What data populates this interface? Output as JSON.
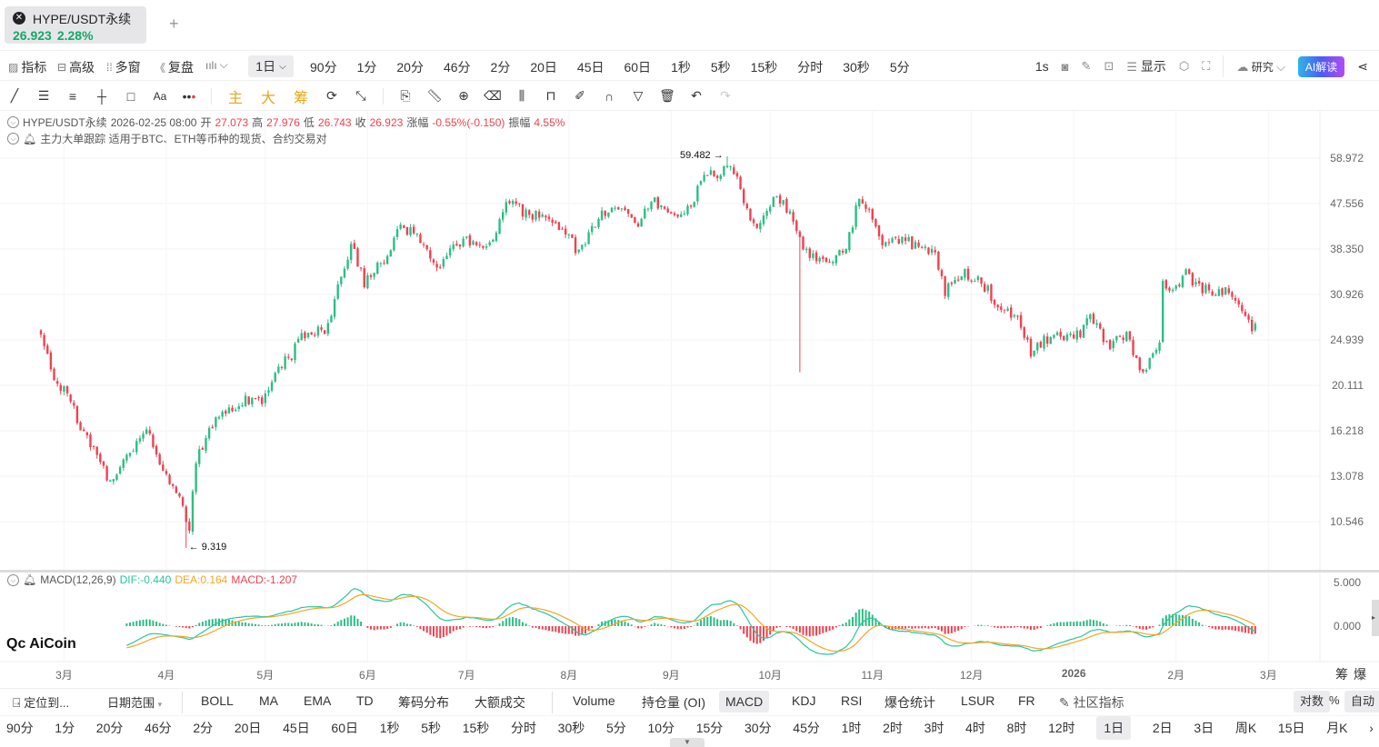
{
  "tab": {
    "symbol": "HYPE/USDT永续",
    "price": "26.923",
    "change": "2.28%",
    "icon": "hype-coin-icon",
    "add_label": "+"
  },
  "toolbar1": {
    "left": [
      {
        "icon": "indicator-icon",
        "label": "指标"
      },
      {
        "icon": "advanced-icon",
        "label": "高级"
      },
      {
        "icon": "multi-window-icon",
        "label": "多窗"
      },
      {
        "icon": "replay-icon",
        "label": "复盘"
      },
      {
        "icon": "candle-type-icon",
        "label": ""
      }
    ],
    "active_period": "1日",
    "periods": [
      "90分",
      "1分",
      "20分",
      "46分",
      "2分",
      "20日",
      "45日",
      "60日",
      "1秒",
      "5秒",
      "15秒",
      "分时",
      "30秒",
      "5分"
    ],
    "right": {
      "interval": "1s",
      "display": "显示",
      "research": "研究",
      "ai": "AI解读"
    }
  },
  "toolbar2": {
    "gold": [
      "主",
      "大",
      "筹"
    ]
  },
  "info": {
    "symbol": "HYPE/USDT永续",
    "datetime": "2026-02-25 08:00",
    "open_label": "开",
    "open": "27.073",
    "high_label": "高",
    "high": "27.976",
    "low_label": "低",
    "low": "26.743",
    "close_label": "收",
    "close": "26.923",
    "chg_label": "涨幅",
    "chg": "-0.55%(-0.150)",
    "amp_label": "振幅",
    "amp": "4.55%",
    "indicator": "主力大单跟踪 适用于BTC、ETH等币种的现货、合约交易对"
  },
  "macd_info": {
    "name": "MACD(12,26,9)",
    "dif": "DIF:-0.440",
    "dea": "DEA:0.164",
    "macd": "MACD:-1.207"
  },
  "logo": "AiCoin",
  "colors": {
    "up": "#2ebd85",
    "down": "#f0414f",
    "dif": "#26c6a0",
    "dea": "#f5a623",
    "accent": "#12a96b",
    "gold": "#e3a81b"
  },
  "chart_data": {
    "type": "candlestick",
    "scale": "log",
    "y_ticks": [
      "58.972",
      "47.556",
      "38.350",
      "30.926",
      "24.939",
      "20.111",
      "16.218",
      "13.078",
      "10.546"
    ],
    "x_ticks": [
      {
        "label": "3月",
        "date": "2025-03-01"
      },
      {
        "label": "4月",
        "date": "2025-04-01"
      },
      {
        "label": "5月",
        "date": "2025-05-01"
      },
      {
        "label": "6月",
        "date": "2025-06-01"
      },
      {
        "label": "7月",
        "date": "2025-07-01"
      },
      {
        "label": "8月",
        "date": "2025-08-01"
      },
      {
        "label": "9月",
        "date": "2025-09-01"
      },
      {
        "label": "10月",
        "date": "2025-10-01"
      },
      {
        "label": "11月",
        "date": "2025-11-01"
      },
      {
        "label": "12月",
        "date": "2025-12-01"
      },
      {
        "label": "2026",
        "date": "2026-01-01"
      },
      {
        "label": "2月",
        "date": "2026-02-01"
      },
      {
        "label": "3月",
        "date": "2026-03-01"
      }
    ],
    "high_annotation": {
      "value": "59.482",
      "date": "2025-09-18"
    },
    "low_annotation": {
      "value": "9.319",
      "date": "2025-04-07"
    },
    "flash_low": {
      "date": "2025-10-10",
      "value": 21.4
    },
    "closes": [
      [
        "2025-02-22",
        25.4
      ],
      [
        "2025-02-26",
        20.5
      ],
      [
        "2025-03-02",
        19.6
      ],
      [
        "2025-03-06",
        16.5
      ],
      [
        "2025-03-12",
        13.9
      ],
      [
        "2025-03-15",
        12.7
      ],
      [
        "2025-03-20",
        14.5
      ],
      [
        "2025-03-26",
        16.5
      ],
      [
        "2025-03-30",
        13.9
      ],
      [
        "2025-04-04",
        12.2
      ],
      [
        "2025-04-08",
        10.3
      ],
      [
        "2025-04-10",
        13.9
      ],
      [
        "2025-04-14",
        16.5
      ],
      [
        "2025-04-19",
        18.0
      ],
      [
        "2025-04-25",
        18.8
      ],
      [
        "2025-04-30",
        18.8
      ],
      [
        "2025-05-03",
        20.9
      ],
      [
        "2025-05-09",
        23.3
      ],
      [
        "2025-05-12",
        25.4
      ],
      [
        "2025-05-20",
        26.5
      ],
      [
        "2025-05-23",
        32.9
      ],
      [
        "2025-05-27",
        39.0
      ],
      [
        "2025-05-31",
        32.9
      ],
      [
        "2025-06-05",
        35.8
      ],
      [
        "2025-06-11",
        42.5
      ],
      [
        "2025-06-16",
        40.7
      ],
      [
        "2025-06-22",
        34.3
      ],
      [
        "2025-06-27",
        39.0
      ],
      [
        "2025-07-03",
        39.9
      ],
      [
        "2025-07-08",
        39.0
      ],
      [
        "2025-07-13",
        48.4
      ],
      [
        "2025-07-19",
        45.4
      ],
      [
        "2025-07-24",
        44.4
      ],
      [
        "2025-07-30",
        42.5
      ],
      [
        "2025-08-04",
        37.4
      ],
      [
        "2025-08-10",
        44.4
      ],
      [
        "2025-08-16",
        47.4
      ],
      [
        "2025-08-21",
        42.5
      ],
      [
        "2025-08-27",
        48.4
      ],
      [
        "2025-09-01",
        44.4
      ],
      [
        "2025-09-07",
        47.4
      ],
      [
        "2025-09-11",
        55.0
      ],
      [
        "2025-09-15",
        55.0
      ],
      [
        "2025-09-19",
        57.5
      ],
      [
        "2025-09-22",
        50.5
      ],
      [
        "2025-09-26",
        42.5
      ],
      [
        "2025-10-02",
        48.4
      ],
      [
        "2025-10-07",
        46.3
      ],
      [
        "2025-10-10",
        40.0
      ],
      [
        "2025-10-13",
        37.4
      ],
      [
        "2025-10-18",
        35.8
      ],
      [
        "2025-10-24",
        39.0
      ],
      [
        "2025-10-28",
        48.4
      ],
      [
        "2025-10-31",
        46.3
      ],
      [
        "2025-11-04",
        40.0
      ],
      [
        "2025-11-09",
        40.0
      ],
      [
        "2025-11-15",
        39.0
      ],
      [
        "2025-11-20",
        37.4
      ],
      [
        "2025-11-23",
        31.5
      ],
      [
        "2025-11-29",
        34.3
      ],
      [
        "2025-12-04",
        32.9
      ],
      [
        "2025-12-10",
        28.9
      ],
      [
        "2025-12-15",
        27.7
      ],
      [
        "2025-12-19",
        23.3
      ],
      [
        "2025-12-23",
        24.8
      ],
      [
        "2025-12-29",
        25.4
      ],
      [
        "2026-01-03",
        25.4
      ],
      [
        "2026-01-06",
        27.7
      ],
      [
        "2026-01-12",
        24.3
      ],
      [
        "2026-01-17",
        25.4
      ],
      [
        "2026-01-21",
        21.4
      ],
      [
        "2026-01-24",
        22.3
      ],
      [
        "2026-01-27",
        24.3
      ],
      [
        "2026-01-28",
        32.9
      ],
      [
        "2026-01-31",
        31.5
      ],
      [
        "2026-02-04",
        34.3
      ],
      [
        "2026-02-09",
        31.5
      ],
      [
        "2026-02-15",
        31.5
      ],
      [
        "2026-02-20",
        30.1
      ],
      [
        "2026-02-24",
        26.2
      ],
      [
        "2026-02-25",
        26.923
      ]
    ],
    "macd_y_ticks": [
      "5.000",
      "0.000"
    ]
  },
  "axis_extra": {
    "chou": "筹",
    "bao": "爆"
  },
  "toolbar3": {
    "locate": "定位到...",
    "range": "日期范围",
    "overlays": [
      "BOLL",
      "MA",
      "EMA",
      "TD",
      "筹码分布",
      "大额成交"
    ],
    "subs": [
      "Volume",
      "持仓量 (OI)",
      "MACD",
      "KDJ",
      "RSI",
      "爆仓统计",
      "LSUR",
      "FR"
    ],
    "active_sub": "MACD",
    "community": "社区指标",
    "log": "对数",
    "pct": "%",
    "auto": "自动"
  },
  "toolbar4": {
    "periods": [
      "90分",
      "1分",
      "20分",
      "46分",
      "2分",
      "20日",
      "45日",
      "60日",
      "1秒",
      "5秒",
      "15秒",
      "分时",
      "30秒",
      "5分",
      "10分",
      "15分",
      "30分",
      "45分",
      "1时",
      "2时",
      "3时",
      "4时",
      "8时",
      "12时",
      "1日",
      "2日",
      "3日",
      "周K",
      "15日",
      "月K",
      "›"
    ],
    "active": "1日"
  }
}
